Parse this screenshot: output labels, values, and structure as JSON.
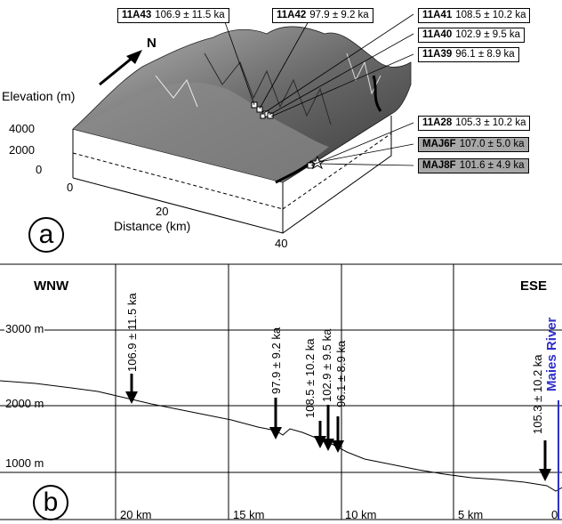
{
  "panel_a": {
    "letter": "a",
    "north": "N",
    "elevation_label": "Elevation (m)",
    "elevation_ticks": [
      "4000",
      "2000",
      "0"
    ],
    "distance_label": "Distance (km)",
    "distance_ticks": [
      "0",
      "20",
      "40"
    ],
    "samples": [
      {
        "id": "11A43",
        "age": "106.9 ± 11.5 ka",
        "highlight": false
      },
      {
        "id": "11A42",
        "age": "97.9 ± 9.2 ka",
        "highlight": false
      },
      {
        "id": "11A41",
        "age": "108.5 ± 10.2 ka",
        "highlight": false
      },
      {
        "id": "11A40",
        "age": "102.9 ± 9.5 ka",
        "highlight": false
      },
      {
        "id": "11A39",
        "age": "96.1 ± 8.9 ka",
        "highlight": false
      },
      {
        "id": "11A28",
        "age": "105.3 ± 10.2 ka",
        "highlight": false
      },
      {
        "id": "MAJ6F",
        "age": "107.0 ± 5.0 ka",
        "highlight": true
      },
      {
        "id": "MAJ8F",
        "age": "101.6 ± 4.9 ka",
        "highlight": true
      }
    ],
    "colors": {
      "highlight_box": "#a8a8a8"
    }
  },
  "panel_b": {
    "letter": "b",
    "left_label": "WNW",
    "right_label": "ESE",
    "elevation_labels": [
      "3000 m",
      "2000 m",
      "1000 m"
    ],
    "distance_labels": [
      "20 km",
      "15 km",
      "10 km",
      "5 km",
      "0"
    ],
    "river": "Maies River",
    "river_color": "#2f2fc8",
    "ages": [
      "106.9 ± 11.5 ka",
      "97.9 ± 9.2 ka",
      "108.5 ± 10.2 ka",
      "102.9 ± 9.5 ka",
      "96.1 ± 8.9 ka",
      "105.3 ± 10.2 ka"
    ]
  }
}
